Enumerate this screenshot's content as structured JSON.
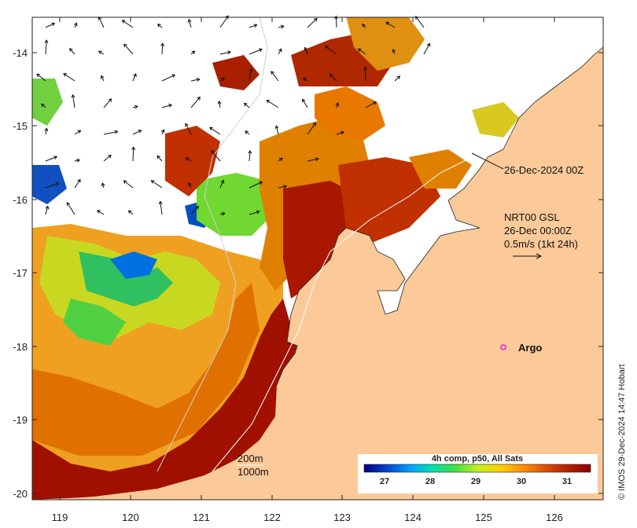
{
  "map": {
    "x_ticks": [
      "119",
      "120",
      "121",
      "122",
      "123",
      "124",
      "125",
      "126"
    ],
    "y_ticks": [
      "-14",
      "-15",
      "-16",
      "-17",
      "-18",
      "-19",
      "-20"
    ],
    "land_color": "#fcc999",
    "ocean_nodata_color": "#ffffff"
  },
  "annotations": {
    "time_label": "26-Dec-2024 00Z",
    "current_title": "NRT00 GSL",
    "current_time": "26-Dec 00:00Z",
    "current_scale": "0.5m/s (1kt 24h)",
    "argo_label": "Argo",
    "contour_200": "200m",
    "contour_1000": "1000m"
  },
  "colorbar": {
    "title": "4h comp, p50, All Sats",
    "ticks": [
      "27",
      "28",
      "29",
      "30",
      "31"
    ],
    "units_hint": "SST",
    "colors": [
      "#000080",
      "#0044cc",
      "#00a0ff",
      "#00e0b0",
      "#40e040",
      "#c0f020",
      "#ffd000",
      "#ff9000",
      "#e05000",
      "#b02000",
      "#8b0000"
    ]
  },
  "credit": "© IMOS 29-Dec-2024 14:47 Hobart"
}
